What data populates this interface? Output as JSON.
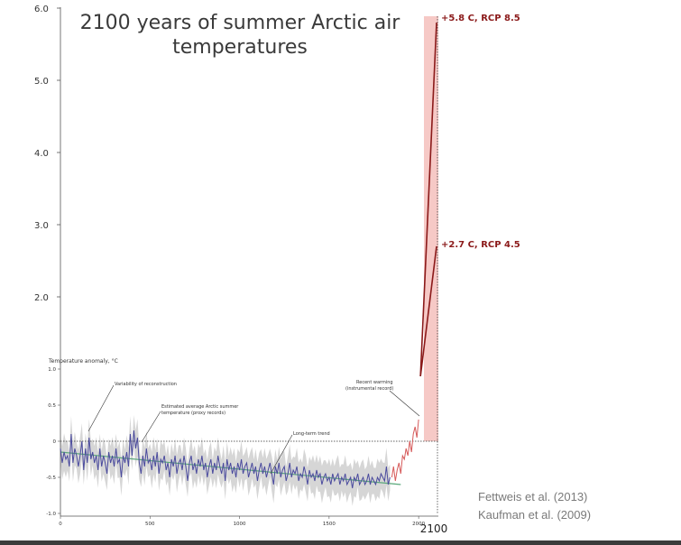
{
  "title_line1": "2100 years of summer Arctic air",
  "title_line2": "temperatures",
  "credits": [
    "Fettweis et al. (2013)",
    "Kaufman et al. (2009)"
  ],
  "chart_data": {
    "type": "line",
    "title": "2100 years of summer Arctic air temperatures",
    "ylabel": "Temperature anomaly, °C",
    "xlabel": "",
    "xlim": [
      0,
      2100
    ],
    "upper_y_ticks": [
      "6.0",
      "5.0",
      "4.0",
      "3.0",
      "2.0"
    ],
    "lower_y_ticks": [
      "1.0",
      "0.5",
      "0",
      "-0.5",
      "-1.0"
    ],
    "x_ticks": [
      "0",
      "500",
      "1000",
      "1500",
      "2000"
    ],
    "x_extra_label": "2100",
    "annotations": [
      "Variability of reconstruction",
      "Estimated average Arctic summer",
      "temperature (proxy records)",
      "Long-term trend",
      "Recent warming",
      "(instrumental record)"
    ],
    "projection_labels": [
      "+5.8 C, RCP 8.5",
      "+2.7 C, RCP 4.5"
    ],
    "projections": [
      {
        "name": "RCP 8.5",
        "start": [
          2000,
          0.9
        ],
        "end": [
          2100,
          5.8
        ]
      },
      {
        "name": "RCP 4.5",
        "start": [
          2000,
          0.9
        ],
        "end": [
          2100,
          2.7
        ]
      }
    ],
    "trend": {
      "start": [
        0,
        -0.15
      ],
      "end": [
        1900,
        -0.6
      ]
    },
    "proxy_series": {
      "x_step": 10,
      "x_start": 0,
      "values": [
        -0.1,
        -0.3,
        -0.15,
        -0.25,
        -0.2,
        -0.35,
        0.1,
        -0.3,
        -0.1,
        -0.2,
        -0.35,
        -0.2,
        0.0,
        -0.4,
        -0.1,
        -0.3,
        0.05,
        -0.25,
        -0.15,
        -0.3,
        -0.2,
        -0.4,
        -0.1,
        -0.35,
        -0.2,
        -0.3,
        -0.45,
        -0.15,
        -0.3,
        -0.2,
        -0.35,
        -0.1,
        -0.3,
        -0.25,
        -0.5,
        -0.2,
        -0.3,
        -0.15,
        -0.35,
        0.1,
        -0.2,
        0.15,
        -0.1,
        0.05,
        -0.3,
        -0.45,
        -0.2,
        -0.35,
        -0.1,
        -0.3,
        -0.25,
        -0.4,
        -0.2,
        -0.35,
        -0.15,
        -0.45,
        -0.25,
        -0.3,
        -0.2,
        -0.4,
        -0.3,
        -0.5,
        -0.25,
        -0.35,
        -0.2,
        -0.45,
        -0.3,
        -0.25,
        -0.4,
        -0.2,
        -0.35,
        -0.55,
        -0.3,
        -0.2,
        -0.4,
        -0.3,
        -0.45,
        -0.25,
        -0.35,
        -0.2,
        -0.4,
        -0.3,
        -0.5,
        -0.35,
        -0.25,
        -0.45,
        -0.3,
        -0.4,
        -0.2,
        -0.35,
        -0.45,
        -0.3,
        -0.55,
        -0.25,
        -0.4,
        -0.3,
        -0.45,
        -0.35,
        -0.5,
        -0.3,
        -0.4,
        -0.25,
        -0.45,
        -0.35,
        -0.3,
        -0.5,
        -0.4,
        -0.3,
        -0.45,
        -0.35,
        -0.55,
        -0.4,
        -0.3,
        -0.45,
        -0.35,
        -0.5,
        -0.4,
        -0.3,
        -0.45,
        -0.6,
        -0.35,
        -0.45,
        -0.3,
        -0.5,
        -0.4,
        -0.35,
        -0.55,
        -0.45,
        -0.3,
        -0.5,
        -0.4,
        -0.45,
        -0.35,
        -0.55,
        -0.45,
        -0.5,
        -0.35,
        -0.45,
        -0.6,
        -0.4,
        -0.5,
        -0.45,
        -0.55,
        -0.4,
        -0.5,
        -0.45,
        -0.6,
        -0.5,
        -0.45,
        -0.55,
        -0.5,
        -0.6,
        -0.45,
        -0.55,
        -0.5,
        -0.45,
        -0.6,
        -0.5,
        -0.55,
        -0.45,
        -0.6,
        -0.55,
        -0.5,
        -0.65,
        -0.5,
        -0.55,
        -0.45,
        -0.6,
        -0.55,
        -0.5,
        -0.6,
        -0.55,
        -0.45,
        -0.6,
        -0.5,
        -0.55,
        -0.6,
        -0.5,
        -0.55,
        -0.45,
        -0.5,
        -0.55,
        -0.35,
        -0.6,
        -0.5
      ]
    },
    "instrumental_series": {
      "x_start": 1850,
      "x_step": 10,
      "values": [
        -0.5,
        -0.35,
        -0.55,
        -0.4,
        -0.3,
        -0.45,
        -0.2,
        -0.25,
        -0.1,
        -0.2,
        0.0,
        -0.15,
        0.1,
        0.2,
        0.05,
        0.3
      ]
    },
    "colors": {
      "proxy_line": "#4b4b9e",
      "trend_line": "#5aa87a",
      "envelope": "#cfcfcf",
      "instrumental": "#d65a5a",
      "projection": "#8b1a1a",
      "projection_band": "#f6c9c6",
      "label_color": "#8b1a1a"
    }
  }
}
